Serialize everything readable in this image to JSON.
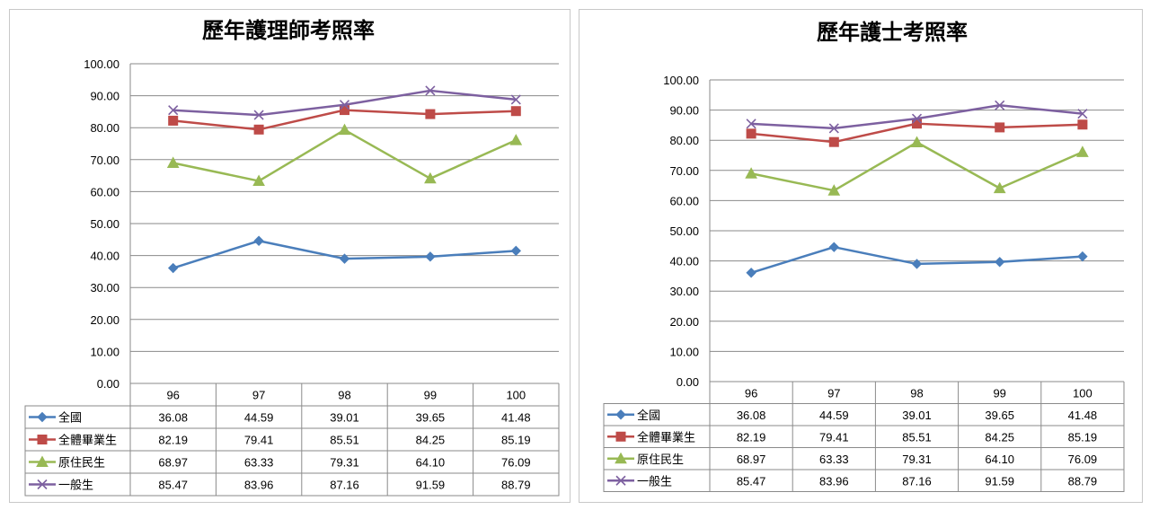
{
  "chart_data": [
    {
      "type": "line",
      "title": "歷年護理師考照率",
      "categories": [
        "96",
        "97",
        "98",
        "99",
        "100"
      ],
      "ylim": [
        0,
        100
      ],
      "yticks": [
        "0.00",
        "10.00",
        "20.00",
        "30.00",
        "40.00",
        "50.00",
        "60.00",
        "70.00",
        "80.00",
        "90.00",
        "100.00"
      ],
      "grid": true,
      "legend": "data-table",
      "series": [
        {
          "name": "全國",
          "color": "#4a7ebb",
          "marker": "diamond",
          "values": [
            36.08,
            44.59,
            39.01,
            39.65,
            41.48
          ],
          "labels": [
            "36.08",
            "44.59",
            "39.01",
            "39.65",
            "41.48"
          ]
        },
        {
          "name": "全體畢業生",
          "color": "#be4b48",
          "marker": "square",
          "values": [
            82.19,
            79.41,
            85.51,
            84.25,
            85.19
          ],
          "labels": [
            "82.19",
            "79.41",
            "85.51",
            "84.25",
            "85.19"
          ]
        },
        {
          "name": "原住民生",
          "color": "#98b954",
          "marker": "triangle",
          "values": [
            68.97,
            63.33,
            79.31,
            64.1,
            76.09
          ],
          "labels": [
            "68.97",
            "63.33",
            "79.31",
            "64.10",
            "76.09"
          ]
        },
        {
          "name": "一般生",
          "color": "#7d60a0",
          "marker": "x",
          "values": [
            85.47,
            83.96,
            87.16,
            91.59,
            88.79
          ],
          "labels": [
            "85.47",
            "83.96",
            "87.16",
            "91.59",
            "88.79"
          ]
        }
      ]
    },
    {
      "type": "line",
      "title": "歷年護士考照率",
      "categories": [
        "96",
        "97",
        "98",
        "99",
        "100"
      ],
      "ylim": [
        0,
        100
      ],
      "yticks": [
        "0.00",
        "10.00",
        "20.00",
        "30.00",
        "40.00",
        "50.00",
        "60.00",
        "70.00",
        "80.00",
        "90.00",
        "100.00"
      ],
      "grid": true,
      "legend": "data-table",
      "series": [
        {
          "name": "全國",
          "color": "#4a7ebb",
          "marker": "diamond",
          "values": [
            36.08,
            44.59,
            39.01,
            39.65,
            41.48
          ],
          "labels": [
            "36.08",
            "44.59",
            "39.01",
            "39.65",
            "41.48"
          ]
        },
        {
          "name": "全體畢業生",
          "color": "#be4b48",
          "marker": "square",
          "values": [
            82.19,
            79.41,
            85.51,
            84.25,
            85.19
          ],
          "labels": [
            "82.19",
            "79.41",
            "85.51",
            "84.25",
            "85.19"
          ]
        },
        {
          "name": "原住民生",
          "color": "#98b954",
          "marker": "triangle",
          "values": [
            68.97,
            63.33,
            79.31,
            64.1,
            76.09
          ],
          "labels": [
            "68.97",
            "63.33",
            "79.31",
            "64.10",
            "76.09"
          ]
        },
        {
          "name": "一般生",
          "color": "#7d60a0",
          "marker": "x",
          "values": [
            85.47,
            83.96,
            87.16,
            91.59,
            88.79
          ],
          "labels": [
            "85.47",
            "83.96",
            "87.16",
            "91.59",
            "88.79"
          ]
        }
      ]
    }
  ]
}
